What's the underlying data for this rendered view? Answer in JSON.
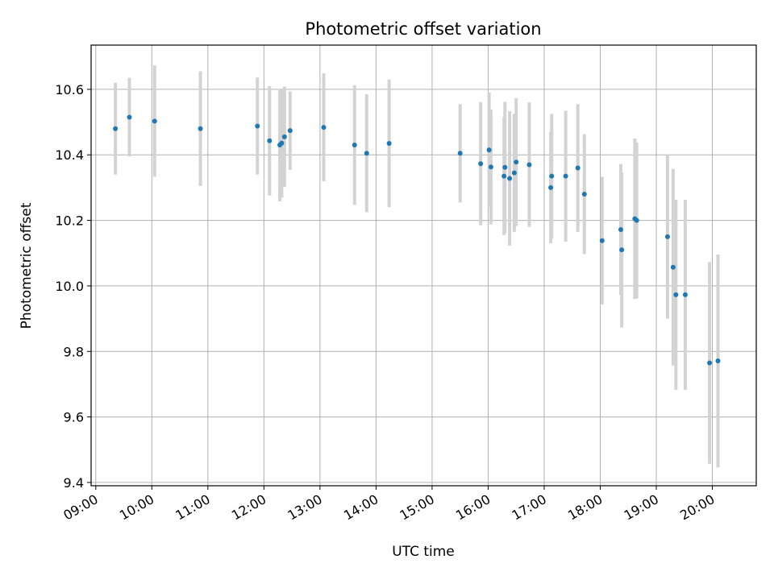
{
  "chart_data": {
    "type": "scatter",
    "title": "Photometric offset variation",
    "xlabel": "UTC time",
    "ylabel": "Photometric offset",
    "x_unit": "UTC hour of day",
    "xlim": [
      "08:55",
      "20:47"
    ],
    "ylim": [
      9.39,
      10.735
    ],
    "x_ticks": [
      "09:00",
      "10:00",
      "11:00",
      "12:00",
      "13:00",
      "14:00",
      "15:00",
      "16:00",
      "17:00",
      "18:00",
      "19:00",
      "20:00"
    ],
    "y_ticks": [
      9.4,
      9.6,
      9.8,
      10.0,
      10.2,
      10.4,
      10.6
    ],
    "y_tick_labels": [
      "9.4",
      "9.6",
      "9.8",
      "10.0",
      "10.2",
      "10.4",
      "10.6"
    ],
    "grid": true,
    "colors": {
      "marker": "#1f77b4",
      "errorbar": "#d3d3d3",
      "grid": "#b0b0b0"
    },
    "points": [
      {
        "x": "09:21",
        "y": 10.48,
        "yerr": 0.14
      },
      {
        "x": "09:36",
        "y": 10.515,
        "yerr": 0.12
      },
      {
        "x": "10:03",
        "y": 10.503,
        "yerr": 0.17
      },
      {
        "x": "10:52",
        "y": 10.48,
        "yerr": 0.175
      },
      {
        "x": "11:53",
        "y": 10.488,
        "yerr": 0.148
      },
      {
        "x": "12:06",
        "y": 10.443,
        "yerr": 0.167
      },
      {
        "x": "12:17",
        "y": 10.43,
        "yerr": 0.172
      },
      {
        "x": "12:19",
        "y": 10.436,
        "yerr": 0.166
      },
      {
        "x": "12:22",
        "y": 10.455,
        "yerr": 0.153
      },
      {
        "x": "12:28",
        "y": 10.474,
        "yerr": 0.12
      },
      {
        "x": "13:04",
        "y": 10.484,
        "yerr": 0.165
      },
      {
        "x": "13:37",
        "y": 10.43,
        "yerr": 0.183
      },
      {
        "x": "13:50",
        "y": 10.405,
        "yerr": 0.18
      },
      {
        "x": "14:14",
        "y": 10.435,
        "yerr": 0.195
      },
      {
        "x": "15:30",
        "y": 10.405,
        "yerr": 0.15
      },
      {
        "x": "15:52",
        "y": 10.373,
        "yerr": 0.188
      },
      {
        "x": "16:01",
        "y": 10.415,
        "yerr": 0.175
      },
      {
        "x": "16:03",
        "y": 10.363,
        "yerr": 0.175
      },
      {
        "x": "16:17",
        "y": 10.335,
        "yerr": 0.18
      },
      {
        "x": "16:18",
        "y": 10.362,
        "yerr": 0.2
      },
      {
        "x": "16:23",
        "y": 10.328,
        "yerr": 0.205
      },
      {
        "x": "16:28",
        "y": 10.345,
        "yerr": 0.18
      },
      {
        "x": "16:30",
        "y": 10.378,
        "yerr": 0.195
      },
      {
        "x": "16:44",
        "y": 10.37,
        "yerr": 0.19
      },
      {
        "x": "17:07",
        "y": 10.3,
        "yerr": 0.17
      },
      {
        "x": "17:08",
        "y": 10.335,
        "yerr": 0.19
      },
      {
        "x": "17:23",
        "y": 10.335,
        "yerr": 0.2
      },
      {
        "x": "17:36",
        "y": 10.36,
        "yerr": 0.195
      },
      {
        "x": "17:43",
        "y": 10.28,
        "yerr": 0.183
      },
      {
        "x": "18:02",
        "y": 10.138,
        "yerr": 0.195
      },
      {
        "x": "18:22",
        "y": 10.172,
        "yerr": 0.2
      },
      {
        "x": "18:23",
        "y": 10.11,
        "yerr": 0.237
      },
      {
        "x": "18:37",
        "y": 10.205,
        "yerr": 0.245
      },
      {
        "x": "18:39",
        "y": 10.2,
        "yerr": 0.238
      },
      {
        "x": "19:12",
        "y": 10.15,
        "yerr": 0.25
      },
      {
        "x": "19:18",
        "y": 10.057,
        "yerr": 0.3
      },
      {
        "x": "19:21",
        "y": 9.973,
        "yerr": 0.29
      },
      {
        "x": "19:31",
        "y": 9.973,
        "yerr": 0.29
      },
      {
        "x": "19:57",
        "y": 9.765,
        "yerr": 0.308
      },
      {
        "x": "20:06",
        "y": 9.771,
        "yerr": 0.325
      }
    ]
  }
}
